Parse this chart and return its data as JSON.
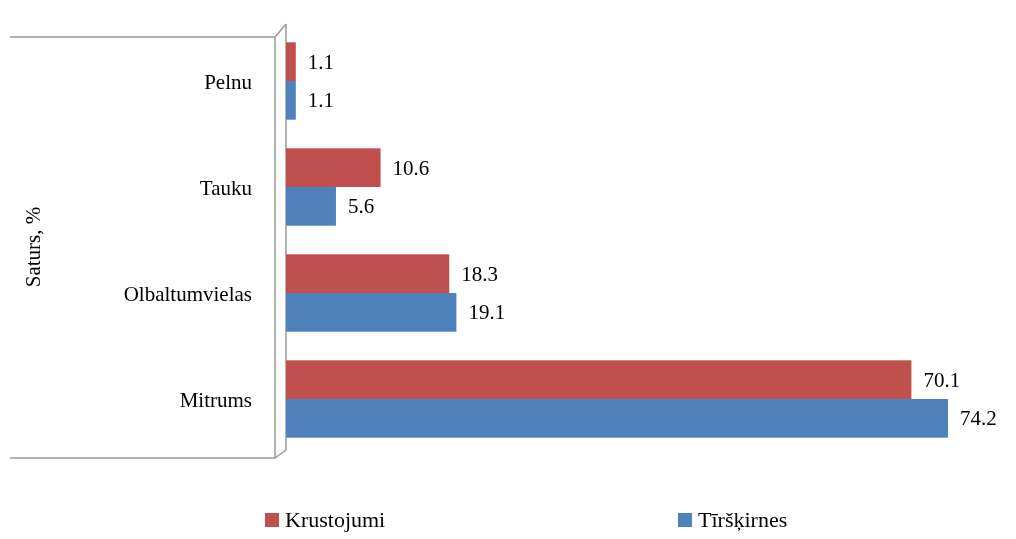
{
  "chart_data": {
    "type": "bar",
    "orientation": "horizontal",
    "ylabel": "Saturs, %",
    "categories": [
      "Pelnu",
      "Tauku",
      "Olbaltumvielas",
      "Mitrums"
    ],
    "series": [
      {
        "name": "Krustojumi",
        "color": "#c0504d",
        "values": [
          1.1,
          10.6,
          18.3,
          70.1
        ]
      },
      {
        "name": "Tīršķirnes",
        "color": "#4f81bd",
        "values": [
          1.1,
          5.6,
          19.1,
          74.2
        ]
      }
    ],
    "data_labels": true,
    "legend": "bottom"
  }
}
